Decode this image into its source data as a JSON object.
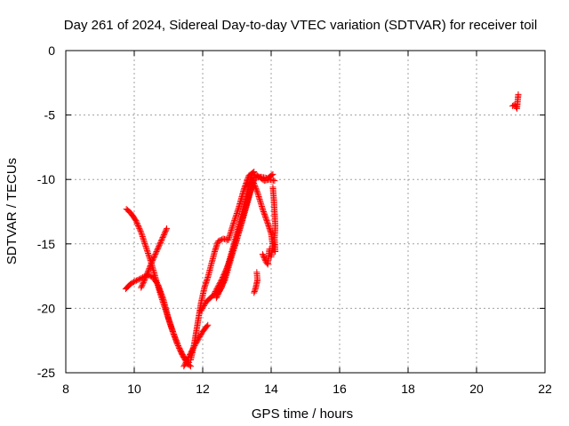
{
  "chart_data": {
    "type": "scatter",
    "title": "Day 261 of 2024, Sidereal Day-to-day VTEC variation (SDTVAR) for receiver toil",
    "xlabel": "GPS time / hours",
    "ylabel": "SDTVAR / TECUs",
    "xlim": [
      8,
      22
    ],
    "ylim": [
      -25,
      0
    ],
    "xticks": [
      "8",
      "10",
      "12",
      "14",
      "16",
      "18",
      "20",
      "22"
    ],
    "yticks": [
      "0",
      "-5",
      "-10",
      "-15",
      "-20",
      "-25"
    ],
    "grid": true,
    "marker": "plus",
    "color": "#ff0000",
    "series": [
      {
        "segments": [
          [
            [
              9.77,
              -12.3
            ],
            [
              9.9,
              -12.6
            ],
            [
              10.05,
              -13.2
            ],
            [
              10.2,
              -14.1
            ],
            [
              10.35,
              -15.3
            ],
            [
              10.5,
              -16.5
            ],
            [
              10.65,
              -17.9
            ],
            [
              10.8,
              -19.2
            ],
            [
              10.95,
              -20.4
            ],
            [
              11.1,
              -21.6
            ],
            [
              11.25,
              -22.7
            ],
            [
              11.4,
              -23.6
            ],
            [
              11.55,
              -24.3
            ],
            [
              11.65,
              -24.5
            ]
          ],
          [
            [
              9.75,
              -18.5
            ],
            [
              9.85,
              -18.2
            ],
            [
              9.95,
              -18.0
            ],
            [
              10.1,
              -17.8
            ],
            [
              10.25,
              -17.6
            ],
            [
              10.4,
              -17.4
            ],
            [
              10.55,
              -17.6
            ],
            [
              10.7,
              -18.2
            ],
            [
              10.85,
              -19.3
            ],
            [
              11.0,
              -20.8
            ],
            [
              11.15,
              -22.0
            ],
            [
              11.3,
              -23.0
            ],
            [
              11.45,
              -23.8
            ],
            [
              11.6,
              -24.2
            ]
          ],
          [
            [
              10.2,
              -18.4
            ],
            [
              10.35,
              -17.5
            ],
            [
              10.5,
              -16.5
            ],
            [
              10.65,
              -15.6
            ],
            [
              10.8,
              -14.7
            ],
            [
              10.95,
              -13.8
            ]
          ],
          [
            [
              11.45,
              -24.5
            ],
            [
              11.55,
              -24.0
            ],
            [
              11.7,
              -23.2
            ],
            [
              11.85,
              -22.5
            ],
            [
              12.0,
              -21.8
            ],
            [
              12.15,
              -21.3
            ]
          ],
          [
            [
              11.65,
              -24.0
            ],
            [
              11.75,
              -22.8
            ],
            [
              11.85,
              -21.2
            ],
            [
              11.95,
              -19.6
            ],
            [
              12.05,
              -18.4
            ],
            [
              12.15,
              -17.6
            ],
            [
              12.25,
              -16.6
            ],
            [
              12.35,
              -15.6
            ],
            [
              12.45,
              -14.8
            ],
            [
              12.6,
              -14.6
            ],
            [
              12.75,
              -14.7
            ],
            [
              12.9,
              -13.4
            ],
            [
              13.05,
              -12.2
            ],
            [
              13.2,
              -10.8
            ],
            [
              13.35,
              -9.7
            ],
            [
              13.5,
              -9.4
            ]
          ],
          [
            [
              11.95,
              -20.2
            ],
            [
              12.1,
              -19.5
            ],
            [
              12.3,
              -19.0
            ],
            [
              12.5,
              -18.6
            ],
            [
              12.65,
              -17.8
            ],
            [
              12.8,
              -16.4
            ],
            [
              12.95,
              -15.0
            ],
            [
              13.1,
              -13.6
            ],
            [
              13.25,
              -12.2
            ],
            [
              13.4,
              -10.8
            ],
            [
              13.5,
              -10.0
            ]
          ],
          [
            [
              12.35,
              -18.8
            ],
            [
              12.55,
              -17.8
            ],
            [
              12.75,
              -16.6
            ],
            [
              12.95,
              -15.1
            ],
            [
              13.15,
              -13.3
            ],
            [
              13.35,
              -11.4
            ],
            [
              13.5,
              -9.9
            ],
            [
              13.7,
              -9.8
            ],
            [
              13.9,
              -9.9
            ],
            [
              14.05,
              -9.6
            ]
          ],
          [
            [
              12.4,
              -19.0
            ],
            [
              12.55,
              -18.4
            ],
            [
              12.7,
              -17.0
            ],
            [
              12.85,
              -15.6
            ],
            [
              13.0,
              -14.2
            ],
            [
              13.15,
              -12.6
            ],
            [
              13.3,
              -11.0
            ],
            [
              13.45,
              -9.6
            ],
            [
              13.6,
              -9.7
            ],
            [
              13.8,
              -10.1
            ],
            [
              13.95,
              -10.0
            ],
            [
              14.1,
              -10.1
            ]
          ],
          [
            [
              12.4,
              -19.2
            ],
            [
              12.5,
              -18.6
            ],
            [
              12.6,
              -18.0
            ]
          ],
          [
            [
              13.45,
              -10.0
            ],
            [
              13.6,
              -11.0
            ],
            [
              13.75,
              -12.3
            ],
            [
              13.9,
              -13.4
            ],
            [
              14.0,
              -14.2
            ],
            [
              14.05,
              -15.2
            ],
            [
              14.0,
              -16.0
            ]
          ],
          [
            [
              13.5,
              -18.8
            ],
            [
              13.55,
              -18.4
            ],
            [
              13.6,
              -17.8
            ],
            [
              13.58,
              -17.2
            ]
          ],
          [
            [
              13.75,
              -15.8
            ],
            [
              13.85,
              -16.4
            ],
            [
              13.9,
              -16.6
            ],
            [
              13.95,
              -15.4
            ]
          ],
          [
            [
              14.05,
              -10.6
            ],
            [
              14.08,
              -11.6
            ],
            [
              14.1,
              -12.6
            ],
            [
              14.12,
              -13.6
            ],
            [
              14.1,
              -14.6
            ],
            [
              14.12,
              -15.6
            ]
          ],
          [
            [
              21.05,
              -4.3
            ],
            [
              21.12,
              -4.2
            ],
            [
              21.18,
              -4.5
            ],
            [
              21.22,
              -3.4
            ]
          ]
        ]
      }
    ]
  }
}
